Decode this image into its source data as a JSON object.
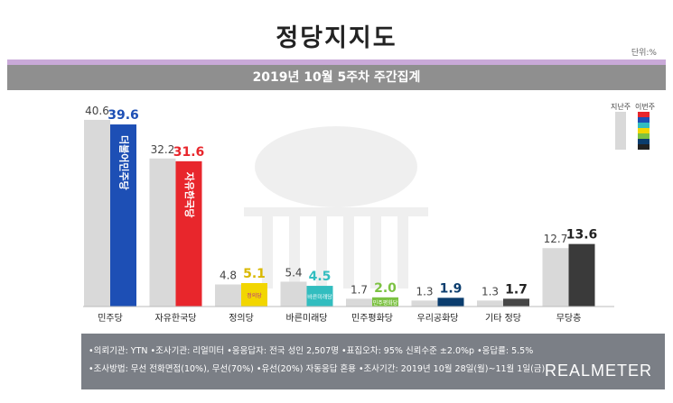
{
  "header": {
    "title": "정당지지도",
    "unit": "단위:%",
    "subtitle": "2019년 10월 5주차 주간집계"
  },
  "legend": {
    "prev": "지난주",
    "curr": "이번주"
  },
  "chart_data": {
    "type": "bar",
    "categories": [
      "민주당",
      "자유한국당",
      "정의당",
      "바른미래당",
      "민주평화당",
      "우리공화당",
      "기타 정당",
      "무당층"
    ],
    "series": [
      {
        "name": "지난주",
        "values": [
          40.6,
          32.2,
          4.8,
          5.4,
          1.7,
          1.3,
          1.3,
          12.7
        ]
      },
      {
        "name": "이번주",
        "values": [
          39.6,
          31.6,
          5.1,
          4.5,
          2.0,
          1.9,
          1.7,
          13.6
        ]
      }
    ],
    "bar_text": [
      "더불어민주당",
      "자유한국당",
      "정의당",
      "바른미래당",
      "민주평화당",
      "",
      "",
      ""
    ],
    "colors": {
      "prev": "#d9d9d9",
      "curr": [
        "#1d4fb5",
        "#e8262c",
        "#f2d600",
        "#32bdbf",
        "#7cc242",
        "#0b3d6e",
        "#464646",
        "#3a3a3a"
      ],
      "label": [
        "#1d4fb5",
        "#e8262c",
        "#d9b800",
        "#32bdbf",
        "#7cc242",
        "#0b3d6e",
        "#222222",
        "#222222"
      ]
    }
  },
  "footer": {
    "line1": "•의뢰기관: YTN •조사기관: 리얼미터 •응응답자: 전국 성인 2,507명 •표집오차: 95% 신뢰수준 ±2.0%p •응답률: 5.5%",
    "line2": "•조사방법: 무선 전화면접(10%), 무선(70%) •유선(20%) 자동응답 혼용 •조사기간: 2019년 10월 28일(월)~11월 1일(금)",
    "logo": "REALMETER"
  }
}
